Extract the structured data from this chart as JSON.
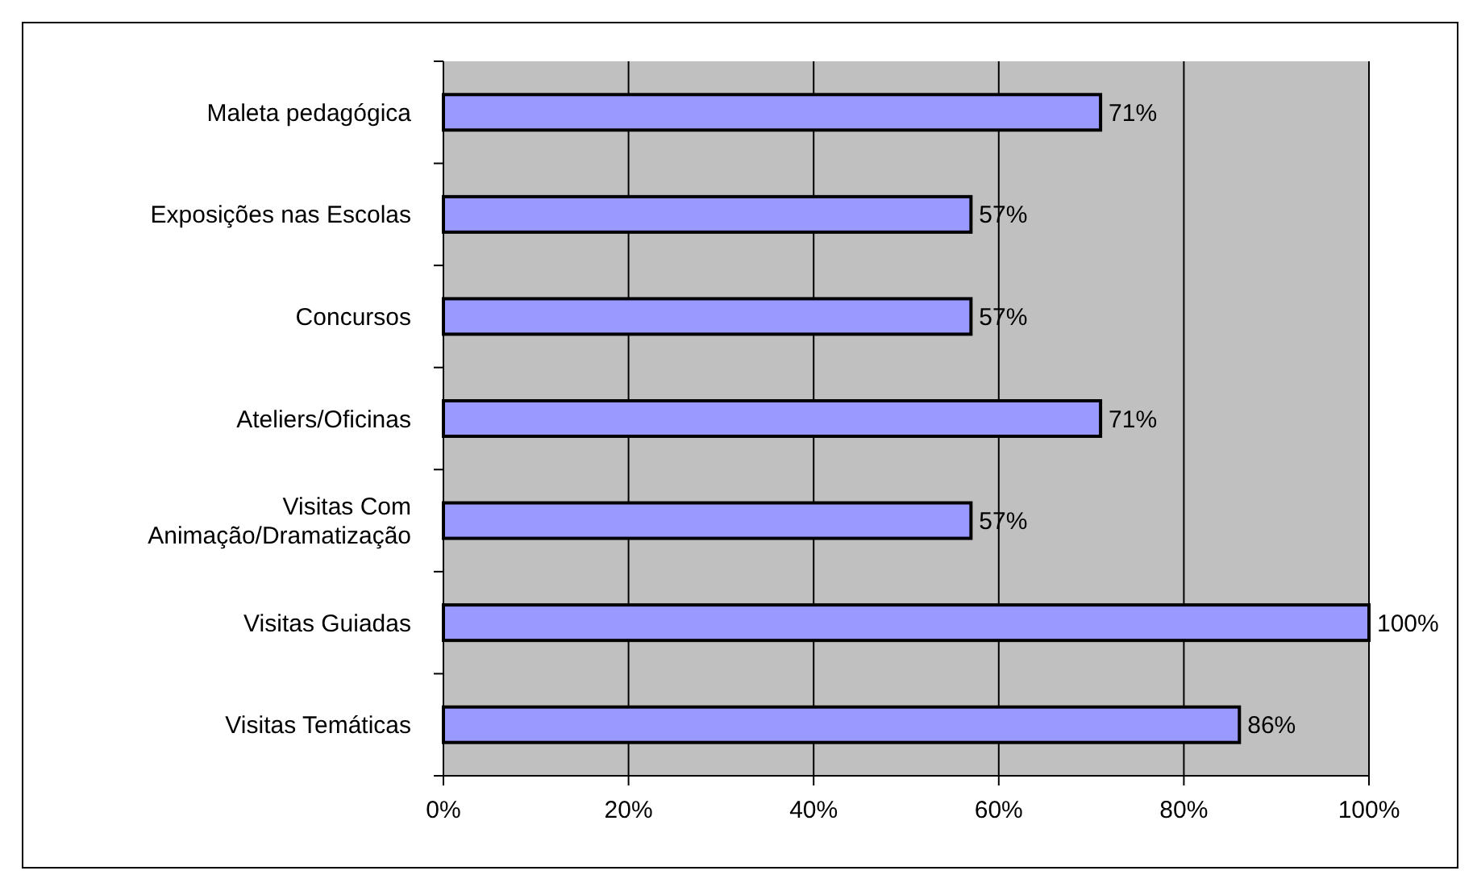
{
  "chart_data": {
    "type": "bar",
    "orientation": "horizontal",
    "categories": [
      "Maleta pedagógica",
      "Exposições nas Escolas",
      "Concursos",
      "Ateliers/Oficinas",
      "Visitas Com\nAnimação/Dramatização",
      "Visitas Guiadas",
      "Visitas Temáticas"
    ],
    "values": [
      71,
      57,
      57,
      71,
      57,
      100,
      86
    ],
    "value_labels": [
      "71%",
      "57%",
      "57%",
      "71%",
      "57%",
      "100%",
      "86%"
    ],
    "color": "#9999ff",
    "xlim": [
      0,
      100
    ],
    "xticks": [
      {
        "value": 0,
        "label": "0%"
      },
      {
        "value": 20,
        "label": "20%"
      },
      {
        "value": 40,
        "label": "40%"
      },
      {
        "value": 60,
        "label": "60%"
      },
      {
        "value": 80,
        "label": "80%"
      },
      {
        "value": 100,
        "label": "100%"
      }
    ],
    "grid": "x"
  }
}
